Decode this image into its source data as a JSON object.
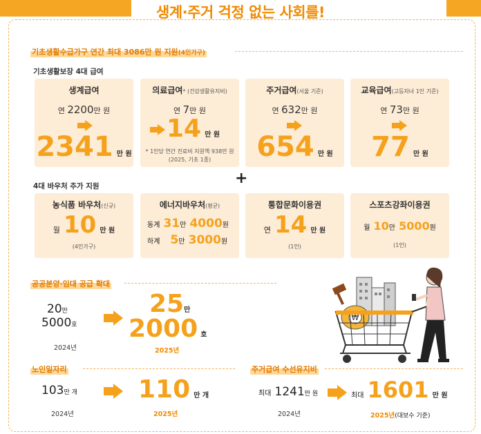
{
  "title": "생계·주거 걱정 없는 사회를!",
  "section1": {
    "heading": "기초생활수급가구 연간 최대 3086만 원 지원",
    "heading_note": "(4인가구)",
    "sub1": "기초생활보장 4대 급여",
    "cards1": [
      {
        "name": "생계급여",
        "name_note": "",
        "before_prefix": "연",
        "before_value": "2200",
        "before_unit": "만 원",
        "after_value": "2341",
        "after_unit": "만 원"
      },
      {
        "name": "의료급여",
        "name_note": "* (건강생활유지비)",
        "before_prefix": "연",
        "before_value": "7",
        "before_unit": "만 원",
        "after_value": "14",
        "after_unit": "만 원",
        "note1": "* 1인당 연간 진료비 지원액 938만 원",
        "note2": "(2025, 기초 1종)"
      },
      {
        "name": "주거급여",
        "name_note": "(서울 기준)",
        "before_prefix": "연",
        "before_value": "632",
        "before_unit": "만 원",
        "after_value": "654",
        "after_unit": "만 원"
      },
      {
        "name": "교육급여",
        "name_note": "(고등자녀 1인 기준)",
        "before_prefix": "연",
        "before_value": "73",
        "before_unit": "만 원",
        "after_value": "77",
        "after_unit": "만 원"
      }
    ],
    "plus": "+",
    "sub2": "4대 바우처 추가 지원",
    "cards2": [
      {
        "name": "농식품 바우처",
        "name_note": "(신규)",
        "prefix": "월",
        "value": "10",
        "unit": "만 원",
        "note": "(4인가구)"
      },
      {
        "name": "에너지바우처",
        "name_note": "(평균)",
        "row1_label": "동계",
        "row1_big1": "31",
        "row1_mid": "만",
        "row1_big2": "4000",
        "row1_unit": "원",
        "row2_label": "하계",
        "row2_big1": "5",
        "row2_mid": "만",
        "row2_big2": "3000",
        "row2_unit": "원"
      },
      {
        "name": "통합문화이용권",
        "name_note": "",
        "prefix": "연",
        "value": "14",
        "unit": "만 원",
        "note": "(1인)"
      },
      {
        "name": "스포츠강좌이용권",
        "name_note": "",
        "prefix": "월",
        "value1": "10",
        "mid": "만",
        "value2": "5000",
        "unit": "원",
        "note": "(1인)"
      }
    ]
  },
  "section2": {
    "heading": "공공분양·임대 공급 확대",
    "before_value1": "20",
    "before_unit1": "만",
    "before_value2": "5000",
    "before_unit2": "호",
    "before_year": "2024년",
    "after_value1": "25",
    "after_unit1": "만",
    "after_value2": "2000",
    "after_unit2": "호",
    "after_year": "2025년"
  },
  "section3": {
    "heading": "노인일자리",
    "before_value": "103",
    "before_unit": "만 개",
    "before_year": "2024년",
    "after_value": "110",
    "after_unit": "만 개",
    "after_year": "2025년"
  },
  "section4": {
    "heading": "주거급여 수선유지비",
    "before_prefix": "최대",
    "before_value": "1241",
    "before_unit": "만 원",
    "before_year": "2024년",
    "after_prefix": "최대",
    "after_value": "1601",
    "after_unit": "만 원",
    "after_year": "2025년",
    "after_year_note": "(대보수 기준)"
  },
  "colors": {
    "accent": "#f5a11c",
    "card_bg": "#fdecd6",
    "title": "#f08a00"
  },
  "illustration": "woman-pushing-shopping-cart-illustration"
}
